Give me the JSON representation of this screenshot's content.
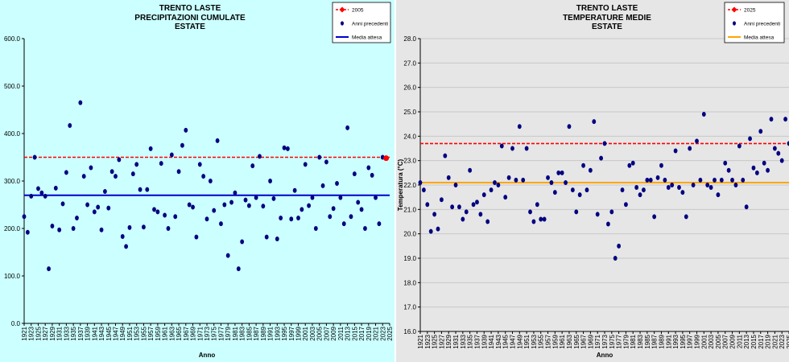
{
  "chart_data": [
    {
      "type": "scatter",
      "title": "TRENTO LASTE",
      "subtitle": "PRECIPITAZIONI CUMULATE",
      "subtitle2": "ESTATE",
      "xlabel": "Anno",
      "ylabel": "",
      "ylim": [
        0,
        600
      ],
      "y_ticks": [
        "0.0",
        "100.0",
        "200.0",
        "300.0",
        "400.0",
        "500.0",
        "600.0"
      ],
      "x_ticks": [
        "1921",
        "1923",
        "1925",
        "1927",
        "1929",
        "1931",
        "1933",
        "1935",
        "1937",
        "1939",
        "1941",
        "1943",
        "1945",
        "1947",
        "1949",
        "1951",
        "1953",
        "1955",
        "1957",
        "1959",
        "1961",
        "1963",
        "1965",
        "1967",
        "1969",
        "1971",
        "1973",
        "1975",
        "1977",
        "1979",
        "1981",
        "1983",
        "1985",
        "1987",
        "1989",
        "1991",
        "1993",
        "1995",
        "1997",
        "1999",
        "2001",
        "2003",
        "2005",
        "2007",
        "2009",
        "2011",
        "2013",
        "2015",
        "2017",
        "2019",
        "2021",
        "2023",
        "2025"
      ],
      "legend": {
        "placement": "top-right",
        "entries": [
          "2005",
          "Anni precedenti",
          "Media attesa"
        ]
      },
      "background": "#ccffff",
      "point_color": "#000080",
      "highlight_color": "#ff0000",
      "mean_color": "#0000cc",
      "highlight_value": 350,
      "mean_value": 270,
      "x": [
        1921,
        1922,
        1923,
        1924,
        1925,
        1926,
        1927,
        1928,
        1929,
        1930,
        1931,
        1932,
        1933,
        1934,
        1935,
        1936,
        1937,
        1938,
        1939,
        1940,
        1941,
        1942,
        1943,
        1944,
        1945,
        1946,
        1947,
        1948,
        1949,
        1950,
        1951,
        1952,
        1953,
        1954,
        1955,
        1956,
        1957,
        1958,
        1959,
        1960,
        1961,
        1962,
        1963,
        1964,
        1965,
        1966,
        1967,
        1968,
        1969,
        1970,
        1971,
        1972,
        1973,
        1974,
        1975,
        1976,
        1977,
        1978,
        1979,
        1980,
        1981,
        1982,
        1983,
        1984,
        1985,
        1986,
        1987,
        1988,
        1989,
        1990,
        1991,
        1992,
        1993,
        1994,
        1995,
        1996,
        1997,
        1998,
        1999,
        2000,
        2001,
        2002,
        2003,
        2004,
        2005,
        2006,
        2007,
        2008,
        2009,
        2010,
        2011,
        2012,
        2013,
        2014,
        2015,
        2016,
        2017,
        2018,
        2019,
        2020,
        2021,
        2022,
        2023,
        2024
      ],
      "values": [
        225,
        192,
        268,
        350,
        284,
        275,
        268,
        115,
        205,
        285,
        197,
        252,
        318,
        417,
        200,
        222,
        465,
        310,
        250,
        328,
        235,
        245,
        197,
        278,
        243,
        320,
        310,
        345,
        183,
        162,
        202,
        315,
        335,
        282,
        203,
        282,
        368,
        240,
        235,
        337,
        228,
        200,
        355,
        225,
        320,
        375,
        407,
        250,
        245,
        182,
        335,
        310,
        220,
        300,
        238,
        385,
        210,
        250,
        143,
        255,
        275,
        115,
        172,
        260,
        248,
        332,
        265,
        352,
        247,
        182,
        300,
        263,
        178,
        222,
        370,
        368,
        220,
        280,
        222,
        240,
        335,
        248,
        265,
        200,
        350,
        290,
        340,
        225,
        242,
        295,
        265,
        210,
        412,
        225,
        315,
        255,
        240,
        200,
        328,
        312,
        265,
        210,
        350,
        348
      ]
    },
    {
      "type": "scatter",
      "title": "TRENTO LASTE",
      "subtitle": "TEMPERATURE MEDIE",
      "subtitle2": "ESTATE",
      "xlabel": "Anno",
      "ylabel": "Temperatura (°C)",
      "ylim": [
        16,
        28
      ],
      "y_ticks": [
        "16.0",
        "17.0",
        "18.0",
        "19.0",
        "20.0",
        "21.0",
        "22.0",
        "23.0",
        "24.0",
        "25.0",
        "26.0",
        "27.0",
        "28.0"
      ],
      "x_ticks": [
        "1921",
        "1923",
        "1925",
        "1927",
        "1929",
        "1931",
        "1933",
        "1935",
        "1937",
        "1939",
        "1941",
        "1943",
        "1945",
        "1947",
        "1949",
        "1951",
        "1953",
        "1955",
        "1957",
        "1959",
        "1961",
        "1963",
        "1965",
        "1967",
        "1969",
        "1971",
        "1973",
        "1975",
        "1977",
        "1979",
        "1981",
        "1983",
        "1985",
        "1987",
        "1989",
        "1991",
        "1993",
        "1995",
        "1997",
        "1999",
        "2001",
        "2003",
        "2005",
        "2007",
        "2009",
        "2011",
        "2013",
        "2015",
        "2017",
        "2019",
        "2021",
        "2023",
        "2025"
      ],
      "legend": {
        "placement": "top-right",
        "entries": [
          "2025",
          "Anni precedenti",
          "Media attesa"
        ]
      },
      "background": "#e6e6e6",
      "point_color": "#000080",
      "highlight_color": "#ff0000",
      "mean_color": "#ffa500",
      "highlight_value": 23.7,
      "mean_value": 22.1,
      "x": [
        1921,
        1922,
        1923,
        1924,
        1925,
        1926,
        1927,
        1928,
        1929,
        1930,
        1931,
        1932,
        1933,
        1934,
        1935,
        1936,
        1937,
        1938,
        1939,
        1940,
        1941,
        1942,
        1943,
        1944,
        1945,
        1946,
        1947,
        1948,
        1949,
        1950,
        1951,
        1952,
        1953,
        1954,
        1955,
        1956,
        1957,
        1958,
        1959,
        1960,
        1961,
        1962,
        1963,
        1964,
        1965,
        1966,
        1967,
        1968,
        1969,
        1970,
        1971,
        1972,
        1973,
        1974,
        1975,
        1976,
        1977,
        1978,
        1979,
        1980,
        1981,
        1982,
        1983,
        1984,
        1985,
        1986,
        1987,
        1988,
        1989,
        1990,
        1991,
        1992,
        1993,
        1994,
        1995,
        1996,
        1997,
        1998,
        1999,
        2000,
        2001,
        2002,
        2003,
        2004,
        2005,
        2006,
        2007,
        2008,
        2009,
        2010,
        2011,
        2012,
        2013,
        2014,
        2015,
        2016,
        2017,
        2018,
        2019,
        2020,
        2021,
        2022,
        2023,
        2024,
        2025
      ],
      "values": [
        22.1,
        21.8,
        21.2,
        20.1,
        20.8,
        20.2,
        21.4,
        23.2,
        22.3,
        21.1,
        22.0,
        21.1,
        20.6,
        20.9,
        22.6,
        21.2,
        21.3,
        20.8,
        21.6,
        20.5,
        21.8,
        22.1,
        22.0,
        23.6,
        21.5,
        22.3,
        23.5,
        22.2,
        24.4,
        22.2,
        23.5,
        20.9,
        20.5,
        21.2,
        20.6,
        20.6,
        22.3,
        22.1,
        21.7,
        22.5,
        22.5,
        22.1,
        24.4,
        21.8,
        20.9,
        21.6,
        22.8,
        21.8,
        22.6,
        24.6,
        20.8,
        23.1,
        23.7,
        20.4,
        20.9,
        19.0,
        19.5,
        21.8,
        21.2,
        22.8,
        22.9,
        21.9,
        21.6,
        21.8,
        22.2,
        22.2,
        20.7,
        22.3,
        22.8,
        22.2,
        21.9,
        22.0,
        23.4,
        21.9,
        21.7,
        20.7,
        23.5,
        22.0,
        23.8,
        22.2,
        24.9,
        22.0,
        21.9,
        22.2,
        21.6,
        22.2,
        22.9,
        22.6,
        22.2,
        22.0,
        23.6,
        22.2,
        21.1,
        23.9,
        22.7,
        22.5,
        24.2,
        22.9,
        22.6,
        24.7,
        23.5,
        23.3,
        23.0,
        24.7,
        23.7
      ]
    }
  ]
}
